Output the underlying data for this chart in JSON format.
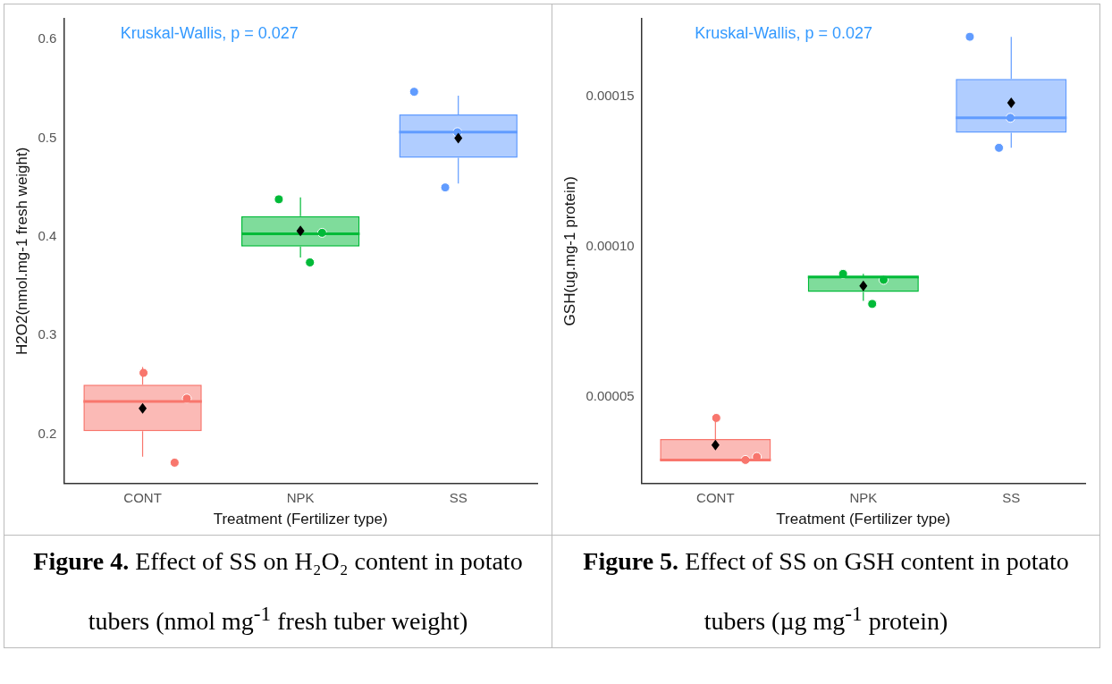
{
  "chart_data": [
    {
      "type": "box",
      "categories": [
        "CONT",
        "NPK",
        "SS"
      ],
      "colors": [
        "#f8766d",
        "#00ba38",
        "#619cff"
      ],
      "xlabel": "Treatment (Fertilizer type)",
      "ylabel": "H2O2(nmol.mg-1 fresh weight)",
      "ylim": [
        0.15,
        0.621
      ],
      "yticks": [
        0.2,
        0.3,
        0.4,
        0.5,
        0.6
      ],
      "grid": false,
      "legend": false,
      "boxes": [
        {
          "low": 0.177,
          "q1": 0.203,
          "median": 0.233,
          "q3": 0.25,
          "high": 0.268,
          "mean": 0.226
        },
        {
          "low": 0.379,
          "q1": 0.39,
          "median": 0.403,
          "q3": 0.421,
          "high": 0.44,
          "mean": 0.406
        },
        {
          "low": 0.454,
          "q1": 0.48,
          "median": 0.506,
          "q3": 0.524,
          "high": 0.543,
          "mean": 0.5
        }
      ],
      "series": [
        {
          "type": "scatter",
          "x": [
            "CONT",
            "CONT",
            "CONT",
            "NPK",
            "NPK",
            "NPK",
            "SS",
            "SS",
            "SS"
          ],
          "values": [
            0.262,
            0.236,
            0.171,
            0.438,
            0.404,
            0.374,
            0.547,
            0.506,
            0.45
          ],
          "colors": [
            "#f8766d",
            "#f8766d",
            "#f8766d",
            "#00ba38",
            "#00ba38",
            "#00ba38",
            "#619cff",
            "#619cff",
            "#619cff"
          ]
        }
      ],
      "annotations": [
        "Kruskal-Wallis, p = 0.027",
        "Figure 4. Effect of SS on H₂O₂ content in potato tubers (nmol mg$^{-1}$ fresh tuber weight)"
      ]
    },
    {
      "type": "box",
      "categories": [
        "CONT",
        "NPK",
        "SS"
      ],
      "colors": [
        "#f8766d",
        "#00ba38",
        "#619cff"
      ],
      "xlabel": "Treatment (Fertilizer type)",
      "ylabel": "GSH(ug.mg-1 protein)",
      "ylim": [
        2.12e-05,
        0.000176
      ],
      "yticks": [
        {
          "value": 5e-05,
          "label": "0.00005"
        },
        {
          "value": 0.0001,
          "label": "0.00010"
        },
        {
          "value": 0.00015,
          "label": "0.00015"
        }
      ],
      "grid": false,
      "legend": false,
      "boxes": [
        {
          "low": 2.9e-05,
          "q1": 2.9e-05,
          "median": 2.9e-05,
          "q3": 3.6e-05,
          "high": 4.2e-05,
          "mean": 3.4e-05
        },
        {
          "low": 8.2e-05,
          "q1": 8.5e-05,
          "median": 9e-05,
          "q3": 9e-05,
          "high": 9.1e-05,
          "mean": 8.7e-05
        },
        {
          "low": 0.000133,
          "q1": 0.000138,
          "median": 0.000143,
          "q3": 0.000156,
          "high": 0.00017,
          "mean": 0.000148
        }
      ],
      "series": [
        {
          "type": "scatter",
          "x": [
            "CONT",
            "CONT",
            "CONT",
            "NPK",
            "NPK",
            "NPK",
            "SS",
            "SS",
            "SS"
          ],
          "values": [
            4.3e-05,
            3e-05,
            2.9e-05,
            9.1e-05,
            8.9e-05,
            8.1e-05,
            0.00017,
            0.000143,
            0.000133
          ],
          "colors": [
            "#f8766d",
            "#f8766d",
            "#f8766d",
            "#00ba38",
            "#00ba38",
            "#00ba38",
            "#619cff",
            "#619cff",
            "#619cff"
          ]
        }
      ],
      "annotations": [
        "Kruskal-Wallis, p = 0.027",
        "Figure 5. Effect of SS on GSH content in potato tubers (µg mg$^{-1}$ protein)"
      ]
    }
  ]
}
